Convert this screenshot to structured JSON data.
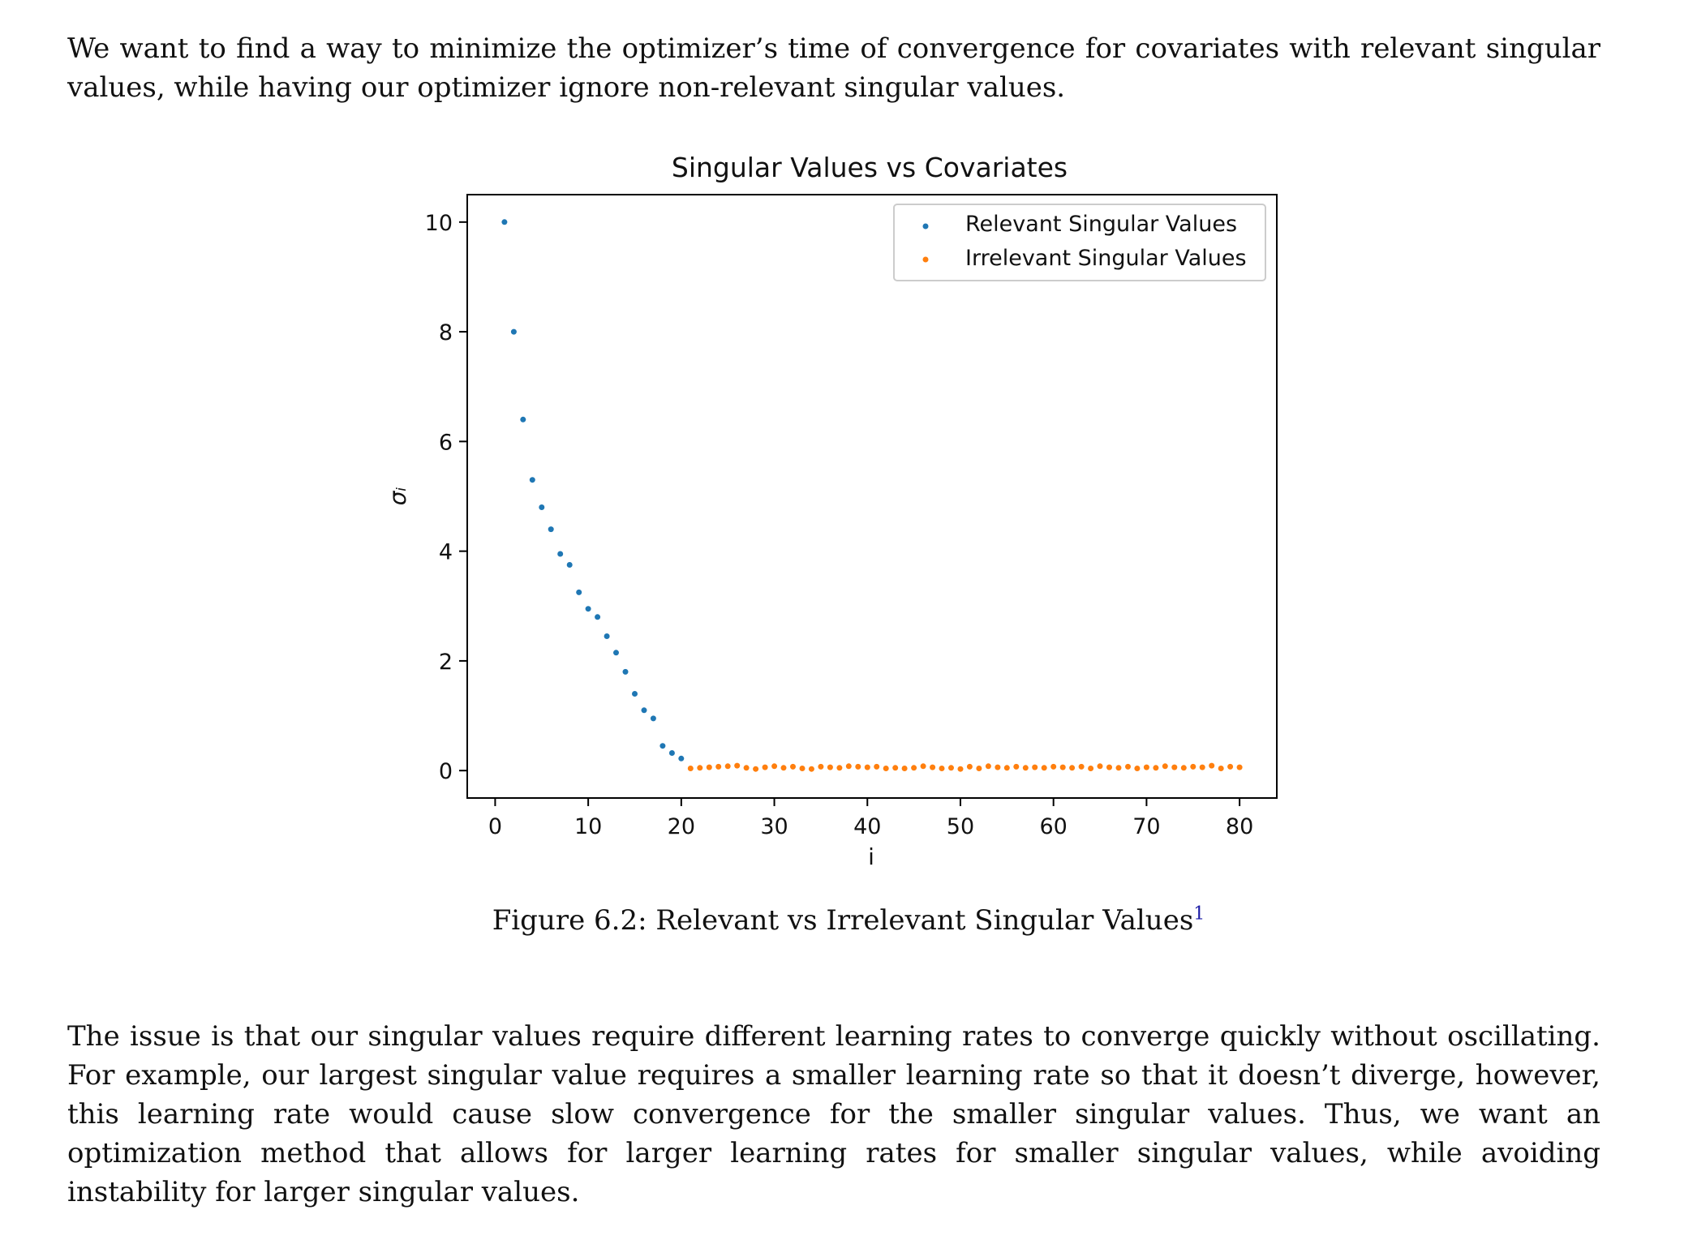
{
  "paragraphs": {
    "top": "We want to find a way to minimize the optimizer’s time of convergence for covariates with relevant singular values, while having our optimizer ignore non-relevant singular values.",
    "bottom": "The issue is that our singular values require different learning rates to converge quickly without oscillating. For example, our largest singular value requires a smaller learning rate so that it doesn’t diverge, however, this learning rate would cause slow convergence for the smaller singular values. Thus, we want an optimization method that allows for larger learning rates for smaller singular values, while avoiding instability for larger singular values."
  },
  "figure": {
    "caption": "Figure 6.2: Relevant vs Irrelevant Singular Values",
    "footnote_mark": "1"
  },
  "chart_data": {
    "type": "scatter",
    "title": "Singular Values vs Covariates",
    "xlabel": "i",
    "ylabel": "σᵢ",
    "xlim": [
      -3,
      84
    ],
    "ylim": [
      -0.5,
      10.5
    ],
    "xticks": [
      0,
      10,
      20,
      30,
      40,
      50,
      60,
      70,
      80
    ],
    "xtick_labels": [
      "0",
      "10",
      "20",
      "30",
      "40",
      "50",
      "60",
      "70",
      "80"
    ],
    "yticks": [
      0,
      2,
      4,
      6,
      8,
      10
    ],
    "ytick_labels": [
      "0",
      "2",
      "4",
      "6",
      "8",
      "10"
    ],
    "grid": false,
    "legend_position": "top-right",
    "series": [
      {
        "name": "Relevant Singular Values",
        "color": "#1f77b4",
        "x": [
          1,
          2,
          3,
          4,
          5,
          6,
          7,
          8,
          9,
          10,
          11,
          12,
          13,
          14,
          15,
          16,
          17,
          18,
          19,
          20
        ],
        "y": [
          10.0,
          8.0,
          6.4,
          5.3,
          4.8,
          4.4,
          3.95,
          3.75,
          3.25,
          2.95,
          2.8,
          2.45,
          2.15,
          1.8,
          1.4,
          1.1,
          0.95,
          0.45,
          0.32,
          0.22
        ]
      },
      {
        "name": "Irrelevant Singular Values",
        "color": "#ff7f0e",
        "x": [
          21,
          22,
          23,
          24,
          25,
          26,
          27,
          28,
          29,
          30,
          31,
          32,
          33,
          34,
          35,
          36,
          37,
          38,
          39,
          40,
          41,
          42,
          43,
          44,
          45,
          46,
          47,
          48,
          49,
          50,
          51,
          52,
          53,
          54,
          55,
          56,
          57,
          58,
          59,
          60,
          61,
          62,
          63,
          64,
          65,
          66,
          67,
          68,
          69,
          70,
          71,
          72,
          73,
          74,
          75,
          76,
          77,
          78,
          79,
          80
        ],
        "y": [
          0.04,
          0.05,
          0.06,
          0.07,
          0.08,
          0.09,
          0.05,
          0.03,
          0.06,
          0.08,
          0.05,
          0.07,
          0.04,
          0.03,
          0.07,
          0.06,
          0.05,
          0.08,
          0.07,
          0.06,
          0.07,
          0.04,
          0.05,
          0.04,
          0.05,
          0.08,
          0.06,
          0.04,
          0.05,
          0.03,
          0.07,
          0.04,
          0.08,
          0.06,
          0.05,
          0.07,
          0.05,
          0.06,
          0.05,
          0.07,
          0.06,
          0.05,
          0.07,
          0.04,
          0.08,
          0.06,
          0.05,
          0.07,
          0.04,
          0.06,
          0.05,
          0.08,
          0.06,
          0.05,
          0.07,
          0.06,
          0.09,
          0.04,
          0.07,
          0.06
        ]
      }
    ]
  }
}
